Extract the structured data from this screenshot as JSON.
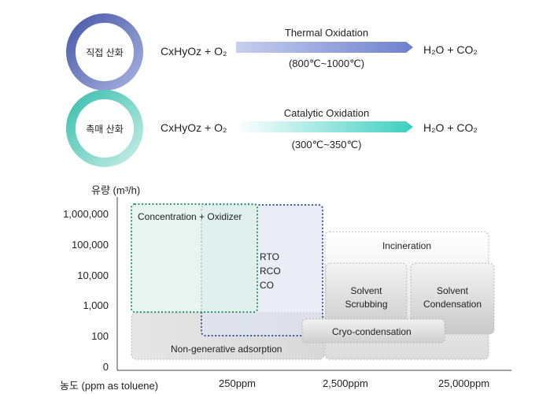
{
  "processes": [
    {
      "circle_label": "직접 산화",
      "reactant": "CxHyOz + O₂",
      "name": "Thermal Oxidation",
      "temperature": "(800℃~1000℃)",
      "product": "H₂O + CO₂",
      "ring_color": "#6f7ec2",
      "arrow_color": "#7f8fd0"
    },
    {
      "circle_label": "촉매 산화",
      "reactant": "CxHyOz + O₂",
      "name": "Catalytic Oxidation",
      "temperature": "(300℃~350℃)",
      "product": "H₂O + CO₂",
      "ring_color": "#5ccabd",
      "arrow_color": "#4fcfc3"
    }
  ],
  "chart": {
    "y_axis_title": "유량 (m³/h)",
    "x_axis_title": "농도 (ppm as toluene)",
    "y_ticks": [
      "1,000,000",
      "100,000",
      "10,000",
      "1,000",
      "100",
      "0"
    ],
    "x_ticks": [
      "250ppm",
      "2,500ppm",
      "25,000ppm"
    ],
    "regions": {
      "concentration_oxidizer": "Concentration + Oxidizer",
      "rto": "RTO",
      "rco": "RCO",
      "co": "CO",
      "incineration": "Incineration",
      "solvent_scrubbing_1": "Solvent",
      "solvent_scrubbing_2": "Scrubbing",
      "solvent_condensation_1": "Solvent",
      "solvent_condensation_2": "Condensation",
      "cryo_condensation": "Cryo-condensation",
      "non_generative_adsorption": "Non-generative adsorption"
    },
    "colors": {
      "concentration_border": "#2e9a6e",
      "rto_border": "#3a5a9e",
      "region_border": "#b8b8b8"
    }
  }
}
